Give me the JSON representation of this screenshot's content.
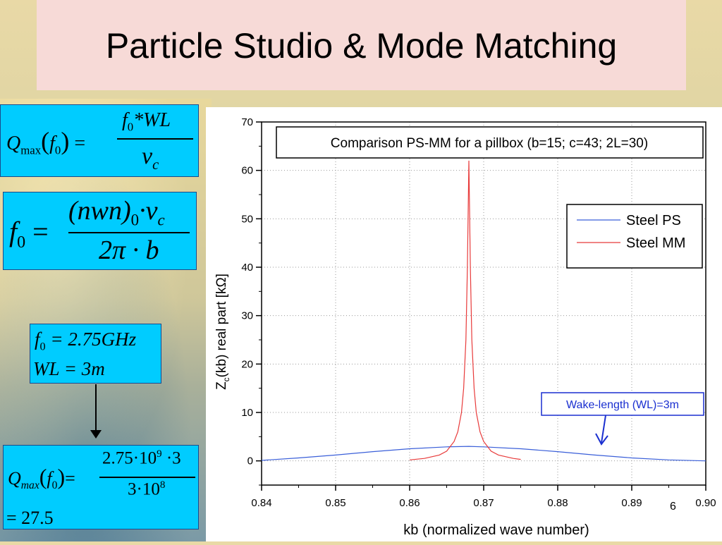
{
  "slide": {
    "title": "Particle Studio & Mode Matching",
    "page_number": "6"
  },
  "equations": {
    "eq1": {
      "lhs": "Q",
      "lhs_sub": "max",
      "arg": "f",
      "arg_sub": "0",
      "num": "f",
      "num_sub": "0",
      "num_rest": "*WL",
      "den": "ν",
      "den_sub": "c"
    },
    "eq2": {
      "lhs": "f",
      "lhs_sub": "0",
      "num_paren": "(nwn)",
      "num_paren_sub": "0",
      "num_rest": "·ν",
      "num_rest_sub": "c",
      "den": "2π · b"
    },
    "eq3": {
      "line1_var": "f",
      "line1_sub": "0",
      "line1_val": " = 2.75GHz",
      "line2": "WL = 3m"
    },
    "eq4": {
      "lhs": "Q",
      "lhs_sub": "max",
      "arg": "f",
      "arg_sub": "0",
      "num": "2.75·10",
      "num_exp": "9",
      "num_rest": " ·3",
      "den": "3·10",
      "den_exp": "8",
      "result": "= 27.5"
    }
  },
  "colors": {
    "eq_box": "#00ccff",
    "title_box": "#f7dad7",
    "series_ps": "#3a5fd9",
    "series_mm": "#e83a3a"
  },
  "chart_data": {
    "type": "line",
    "title": "Comparison PS-MM for a pillbox (b=15; c=43; 2L=30)",
    "xlabel": "kb (normalized wave number)",
    "ylabel_main": "Z",
    "ylabel_sub": "c",
    "ylabel_rest": "(kb)  real part [kΩ]",
    "xlim": [
      0.84,
      0.9
    ],
    "ylim": [
      -5,
      70
    ],
    "x_ticks": [
      "0.84",
      "0.85",
      "0.86",
      "0.87",
      "0.88",
      "0.89",
      "0.90"
    ],
    "y_ticks": [
      "0",
      "10",
      "20",
      "30",
      "40",
      "50",
      "60",
      "70"
    ],
    "grid": true,
    "legend_position": "top-right",
    "annotation": "Wake-length (WL)=3m",
    "series": [
      {
        "name": "Steel PS",
        "color": "#3a5fd9",
        "x": [
          0.84,
          0.845,
          0.85,
          0.855,
          0.86,
          0.865,
          0.868,
          0.87,
          0.875,
          0.88,
          0.885,
          0.89,
          0.895,
          0.9
        ],
        "y": [
          0.1,
          0.6,
          1.2,
          1.9,
          2.5,
          2.9,
          3.0,
          2.9,
          2.5,
          1.9,
          1.2,
          0.6,
          0.2,
          0.0
        ]
      },
      {
        "name": "Steel MM",
        "color": "#e83a3a",
        "x": [
          0.86,
          0.862,
          0.864,
          0.865,
          0.866,
          0.8665,
          0.867,
          0.8673,
          0.8676,
          0.8678,
          0.868,
          0.8682,
          0.8684,
          0.8687,
          0.869,
          0.8695,
          0.87,
          0.871,
          0.872,
          0.874,
          0.875
        ],
        "y": [
          0.2,
          0.5,
          1.2,
          2.0,
          4.0,
          6.0,
          10.0,
          15.0,
          25.0,
          40.0,
          62.0,
          40.0,
          25.0,
          15.0,
          10.0,
          6.0,
          4.0,
          2.0,
          1.2,
          0.5,
          0.3
        ]
      }
    ]
  }
}
